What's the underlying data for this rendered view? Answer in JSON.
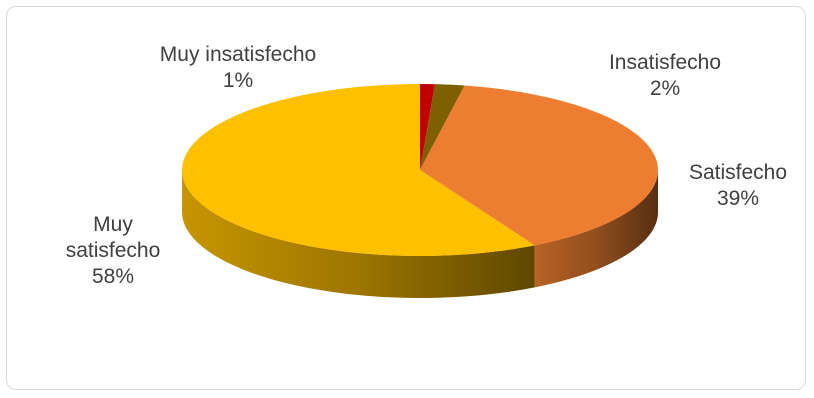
{
  "chart_data": {
    "type": "pie",
    "title": "",
    "categories": [
      "Muy insatisfecho",
      "Insatisfecho",
      "Satisfecho",
      "Muy satisfecho"
    ],
    "values": [
      1,
      2,
      39,
      58
    ],
    "value_labels": [
      "1%",
      "2%",
      "39%",
      "58%"
    ],
    "colors": [
      "#c00000",
      "#7f6000",
      "#ed7d31",
      "#ffc000"
    ],
    "style": "3d",
    "legend": "none",
    "label_lines": {
      "muy_satisfecho": [
        "Muy",
        "satisfecho"
      ]
    }
  }
}
